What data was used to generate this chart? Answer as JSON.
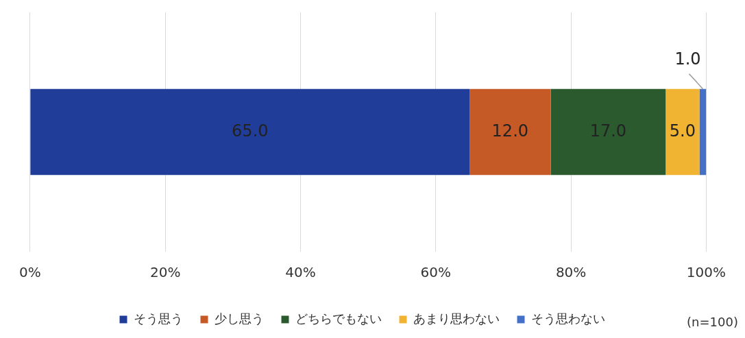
{
  "chart_data": {
    "type": "bar",
    "orientation": "horizontal",
    "stacked": true,
    "categories": [
      null
    ],
    "series": [
      {
        "name": "そう思う",
        "color": "#213d9a",
        "values": [
          65.0
        ],
        "value_labels": [
          "65.0"
        ]
      },
      {
        "name": "少し思う",
        "color": "#c55a26",
        "values": [
          12.0
        ],
        "value_labels": [
          "12.0"
        ]
      },
      {
        "name": "どちらでもない",
        "color": "#2b5a2e",
        "values": [
          17.0
        ],
        "value_labels": [
          "17.0"
        ]
      },
      {
        "name": "あまり思わない",
        "color": "#f0b332",
        "values": [
          5.0
        ],
        "value_labels": [
          "5.0"
        ]
      },
      {
        "name": "そう思わない",
        "color": "#4470c8",
        "values": [
          1.0
        ],
        "value_labels": [
          "1.0"
        ]
      }
    ],
    "xlim": [
      0,
      100
    ],
    "xticks": [
      {
        "value": 0,
        "label": "0%"
      },
      {
        "value": 20,
        "label": "20%"
      },
      {
        "value": 40,
        "label": "40%"
      },
      {
        "value": 60,
        "label": "60%"
      },
      {
        "value": 80,
        "label": "80%"
      },
      {
        "value": 100,
        "label": "100%"
      }
    ],
    "grid": "x",
    "legend": "bottom",
    "annotations": [
      "(n=100)"
    ]
  }
}
